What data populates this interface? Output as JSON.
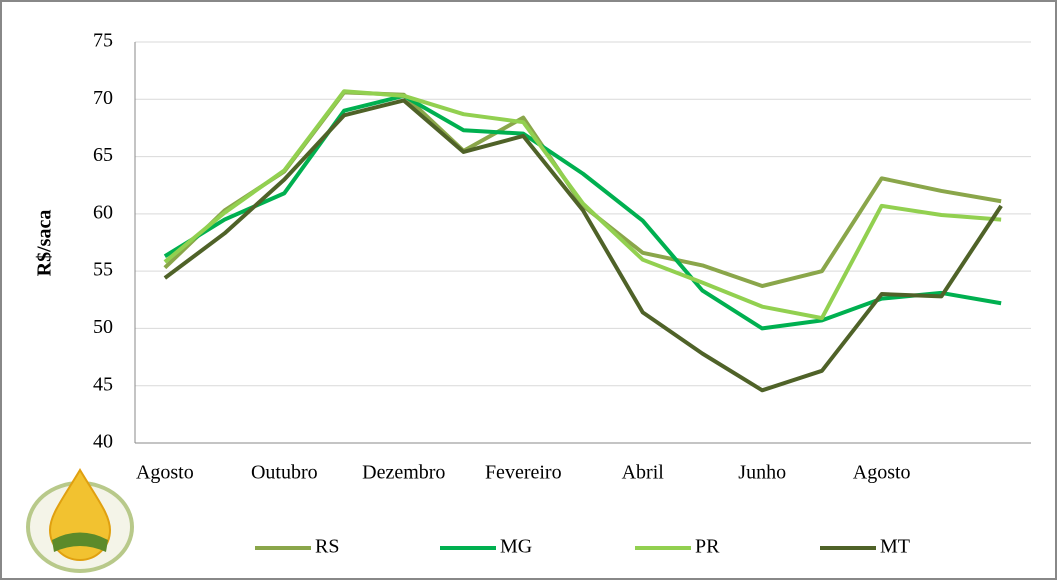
{
  "chart_data": {
    "type": "line",
    "y_label": "R$/saca",
    "categories": [
      "Agosto",
      null,
      "Outubro",
      null,
      "Dezembro",
      null,
      "Fevereiro",
      null,
      "Abril",
      null,
      "Junho",
      null,
      "Agosto",
      null,
      null
    ],
    "ylim": [
      40,
      75
    ],
    "yticks": [
      40,
      45,
      50,
      55,
      60,
      65,
      70,
      75
    ],
    "grid": true,
    "legend": "bottom",
    "series": [
      {
        "name": "RS",
        "color": "#8aa64a",
        "values": [
          55.3,
          60.3,
          63.7,
          70.6,
          70.4,
          65.5,
          68.4,
          60.7,
          56.6,
          55.5,
          53.7,
          55.0,
          63.1,
          62.0,
          61.1
        ]
      },
      {
        "name": "MG",
        "color": "#00b050",
        "values": [
          56.3,
          59.5,
          61.8,
          69.0,
          70.3,
          67.3,
          67.0,
          63.5,
          59.4,
          53.3,
          50.0,
          50.7,
          52.6,
          53.1,
          52.2
        ]
      },
      {
        "name": "PR",
        "color": "#92d050",
        "values": [
          55.8,
          60.1,
          63.8,
          70.7,
          70.3,
          68.7,
          68.0,
          60.9,
          56.0,
          54.0,
          51.9,
          50.9,
          60.7,
          59.9,
          59.5
        ]
      },
      {
        "name": "MT",
        "color": "#4f6228",
        "values": [
          54.4,
          58.3,
          63.0,
          68.6,
          69.9,
          65.4,
          66.8,
          60.3,
          51.4,
          47.8,
          44.6,
          46.3,
          53.0,
          52.8,
          60.7
        ]
      }
    ]
  }
}
